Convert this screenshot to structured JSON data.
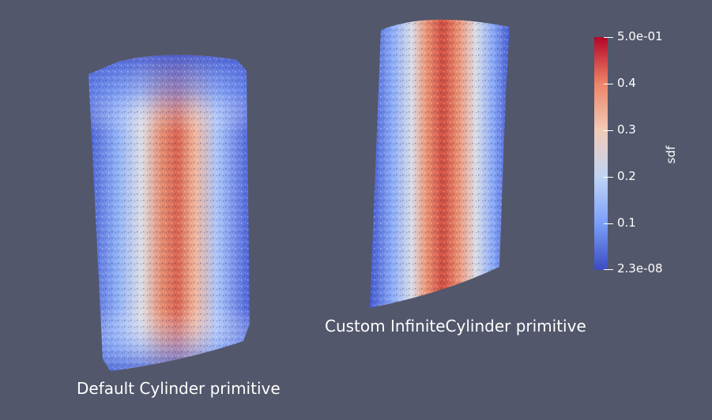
{
  "captions": {
    "left": "Default Cylinder primitive",
    "right": "Custom InfiniteCylinder primitive"
  },
  "colorbar": {
    "title": "sdf",
    "colormap": "coolwarm",
    "min_label": "2.3e-08",
    "max_label": "5.0e-01",
    "ticks": [
      "0.1",
      "0.2",
      "0.3",
      "0.4"
    ],
    "colors": [
      "#3b4cc0",
      "#7b9ff9",
      "#c0d4f5",
      "#f2cbb7",
      "#ee8468",
      "#b40426"
    ]
  },
  "background": "#52576b"
}
